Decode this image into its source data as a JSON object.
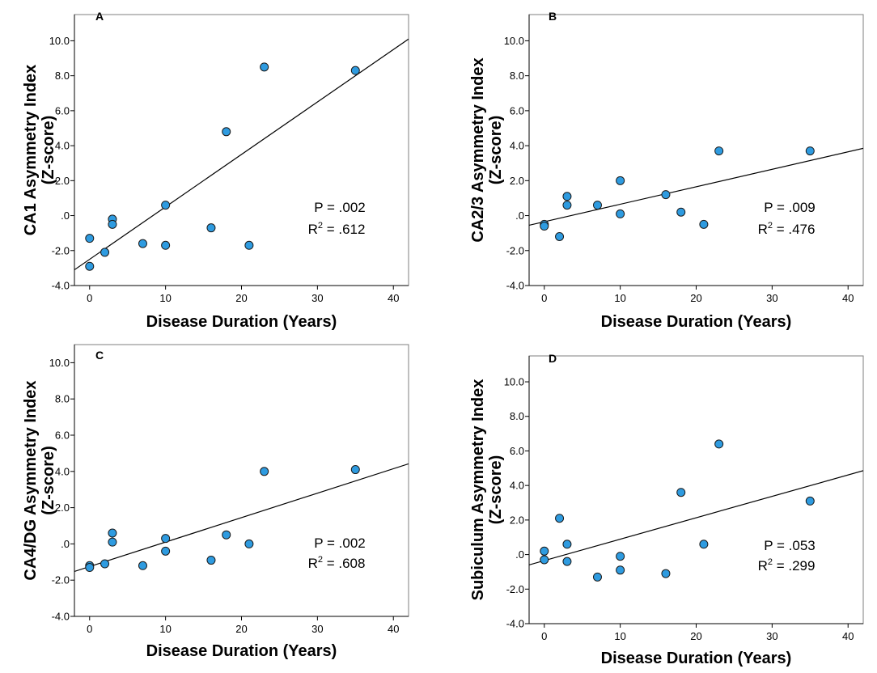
{
  "chart_data": [
    {
      "type": "scatter",
      "panel_label": "A",
      "title": "",
      "xlabel": "Disease Duration (Years)",
      "ylabel": [
        "CA1 Asymmetry Index",
        "(Z-score)"
      ],
      "xlim": [
        -2,
        42
      ],
      "ylim": [
        -4.0,
        11.5
      ],
      "xticks": [
        "0",
        "10",
        "20",
        "30",
        "40"
      ],
      "yticks": [
        "-4.0",
        "-2.0",
        ".0",
        "2.0",
        "4.0",
        "6.0",
        "8.0",
        "10.0"
      ],
      "x": [
        0,
        0,
        2,
        3,
        3,
        7,
        10,
        10,
        16,
        18,
        21,
        23,
        35
      ],
      "y": [
        -2.9,
        -1.3,
        -2.1,
        -0.2,
        -0.5,
        -1.6,
        0.6,
        -1.7,
        -0.7,
        4.8,
        -1.7,
        8.5,
        8.3
      ],
      "fit_line": {
        "slope": 0.3,
        "intercept": -2.5
      },
      "stats": {
        "p_text": "P = .002",
        "r2_prefix": "R",
        "r2_exp": "2",
        "r2_value": " = .612"
      }
    },
    {
      "type": "scatter",
      "panel_label": "B",
      "title": "",
      "xlabel": "Disease Duration (Years)",
      "ylabel": [
        "CA2/3 Asymmetry Index",
        "(Z-score)"
      ],
      "xlim": [
        -2,
        42
      ],
      "ylim": [
        -4.0,
        11.5
      ],
      "xticks": [
        "0",
        "10",
        "20",
        "30",
        "40"
      ],
      "yticks": [
        "-4.0",
        "-2.0",
        ".0",
        "2.0",
        "4.0",
        "6.0",
        "8.0",
        "10.0"
      ],
      "x": [
        0,
        0,
        2,
        3,
        3,
        7,
        10,
        10,
        16,
        18,
        21,
        23,
        35
      ],
      "y": [
        -0.5,
        -0.6,
        -1.2,
        1.1,
        0.6,
        0.6,
        2.0,
        0.1,
        1.2,
        0.2,
        -0.5,
        3.7,
        3.7
      ],
      "fit_line": {
        "slope": 0.1,
        "intercept": -0.35
      },
      "stats": {
        "p_text": "P = .009",
        "r2_prefix": "R",
        "r2_exp": "2",
        "r2_value": " = .476"
      }
    },
    {
      "type": "scatter",
      "panel_label": "C",
      "title": "",
      "xlabel": "Disease Duration (Years)",
      "ylabel": [
        "CA4/DG Asymmetry Index",
        "(Z-score)"
      ],
      "xlim": [
        -2,
        42
      ],
      "ylim": [
        -4.0,
        11.0
      ],
      "xticks": [
        "0",
        "10",
        "20",
        "30",
        "40"
      ],
      "yticks": [
        "-4.0",
        "-2.0",
        ".0",
        "2.0",
        "4.0",
        "6.0",
        "8.0",
        "10.0"
      ],
      "x": [
        0,
        0,
        2,
        3,
        3,
        7,
        10,
        10,
        16,
        18,
        21,
        23,
        35
      ],
      "y": [
        -1.2,
        -1.3,
        -1.1,
        0.6,
        0.1,
        -1.2,
        0.3,
        -0.4,
        -0.9,
        0.5,
        0.0,
        4.0,
        4.1
      ],
      "fit_line": {
        "slope": 0.135,
        "intercept": -1.25
      },
      "stats": {
        "p_text": "P = .002",
        "r2_prefix": "R",
        "r2_exp": "2",
        "r2_value": " = .608"
      }
    },
    {
      "type": "scatter",
      "panel_label": "D",
      "title": "",
      "xlabel": "Disease Duration (Years)",
      "ylabel": [
        "Subiculum Asymmetry Index",
        "(Z-score)"
      ],
      "xlim": [
        -2,
        42
      ],
      "ylim": [
        -4.0,
        11.5
      ],
      "xticks": [
        "0",
        "10",
        "20",
        "30",
        "40"
      ],
      "yticks": [
        "-4.0",
        "-2.0",
        ".0",
        "2.0",
        "4.0",
        "6.0",
        "8.0",
        "10.0"
      ],
      "x": [
        0,
        0,
        2,
        3,
        3,
        7,
        10,
        10,
        16,
        18,
        21,
        23,
        35
      ],
      "y": [
        0.2,
        -0.3,
        2.1,
        0.6,
        -0.4,
        -1.3,
        -0.1,
        -0.9,
        -1.1,
        3.6,
        0.6,
        6.4,
        3.1
      ],
      "fit_line": {
        "slope": 0.124,
        "intercept": -0.35
      },
      "stats": {
        "p_text": "P = .053",
        "r2_prefix": "R",
        "r2_exp": "2",
        "r2_value": " = .299"
      }
    }
  ]
}
